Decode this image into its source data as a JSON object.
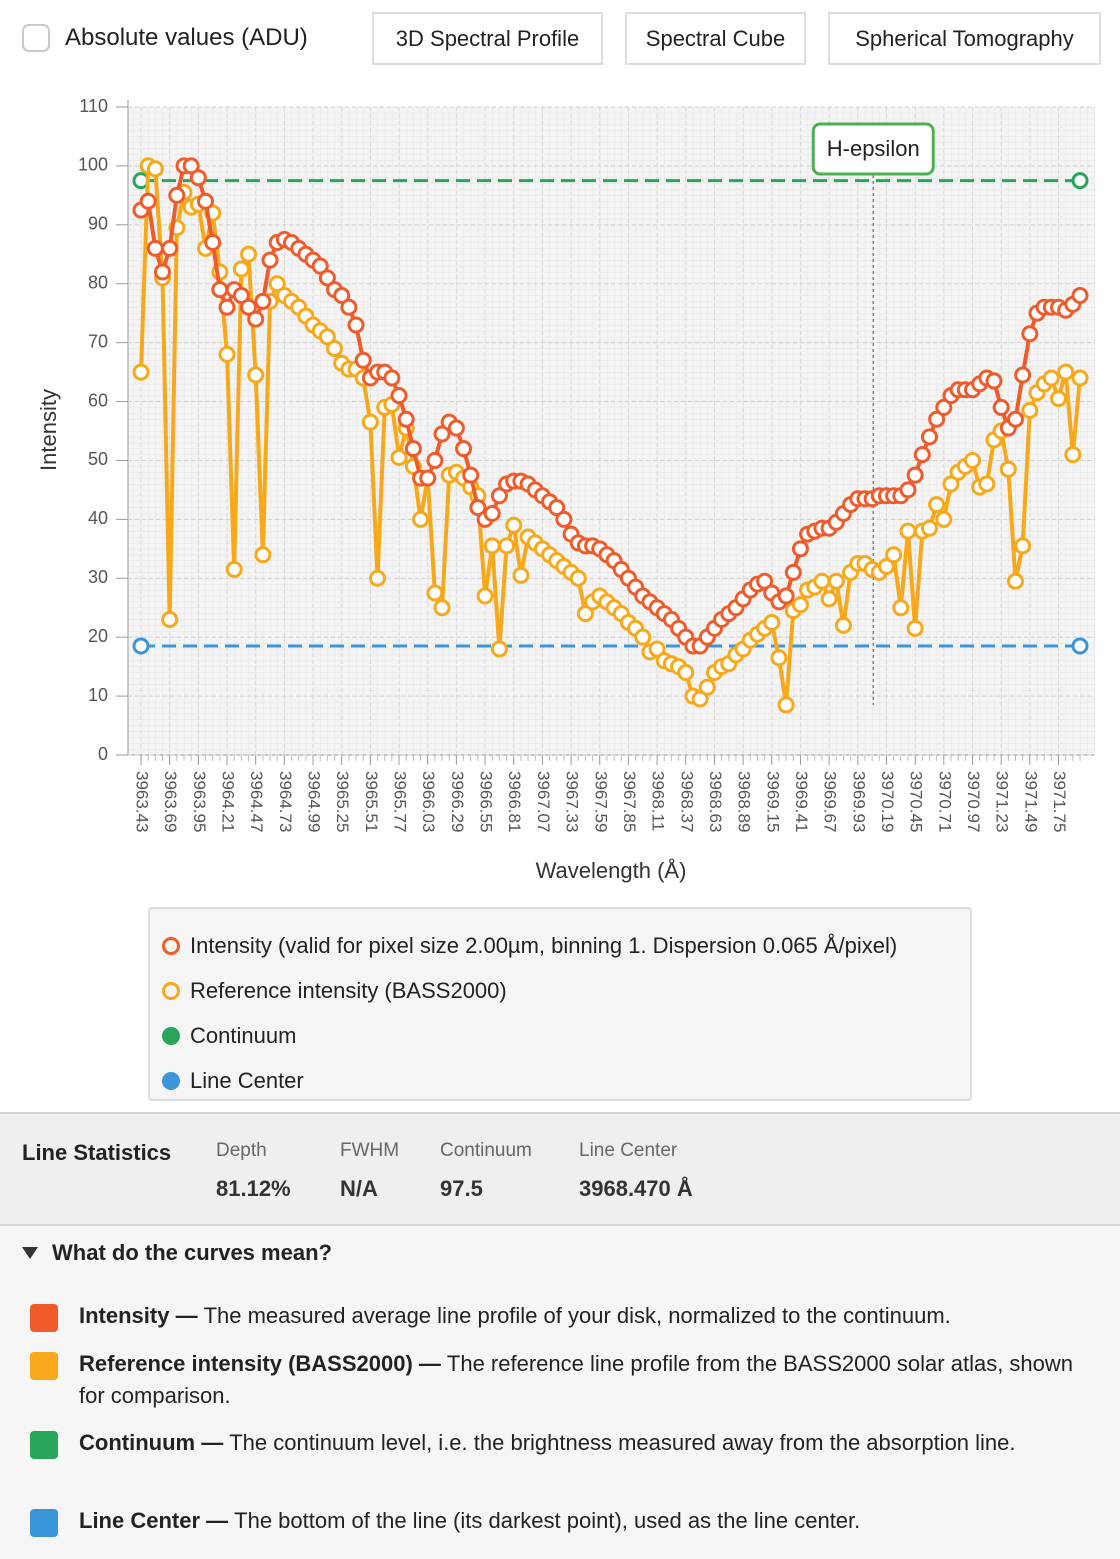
{
  "toolbar": {
    "checkbox_label": "Absolute values (ADU)",
    "buttons": [
      "3D Spectral Profile",
      "Spectral Cube",
      "Spherical Tomography"
    ]
  },
  "chart_data": {
    "type": "line",
    "x_label": "Wavelength (Å)",
    "y_label": "Intensity",
    "categories": [
      "3963.43",
      null,
      null,
      null,
      "3963.69",
      null,
      null,
      null,
      "3963.95",
      null,
      null,
      null,
      "3964.21",
      null,
      null,
      null,
      "3964.47",
      null,
      null,
      null,
      "3964.73",
      null,
      null,
      null,
      "3964.99",
      null,
      null,
      null,
      "3965.25",
      null,
      null,
      null,
      "3965.51",
      null,
      null,
      null,
      "3965.77",
      null,
      null,
      null,
      "3966.03",
      null,
      null,
      null,
      "3966.29",
      null,
      null,
      null,
      "3966.55",
      null,
      null,
      null,
      "3966.81",
      null,
      null,
      null,
      "3967.07",
      null,
      null,
      null,
      "3967.33",
      null,
      null,
      null,
      "3967.59",
      null,
      null,
      null,
      "3967.85",
      null,
      null,
      null,
      "3968.11",
      null,
      null,
      null,
      "3968.37",
      null,
      null,
      null,
      "3968.63",
      null,
      null,
      null,
      "3968.89",
      null,
      null,
      null,
      "3969.15",
      null,
      null,
      null,
      "3969.41",
      null,
      null,
      null,
      "3969.67",
      null,
      null,
      null,
      "3969.93",
      null,
      null,
      null,
      "3970.19",
      null,
      null,
      null,
      "3970.45",
      null,
      null,
      null,
      "3970.71",
      null,
      null,
      null,
      "3970.97",
      null,
      null,
      null,
      "3971.23",
      null,
      null,
      null,
      "3971.49",
      null,
      null,
      null,
      "3971.75",
      null,
      null,
      null
    ],
    "series": [
      {
        "name": "Intensity (valid for pixel size 2.00µm, binning 1. Dispersion 0.065  Å/pixel)",
        "color": "#ef5b2b",
        "values": [
          92.5,
          94,
          86,
          82,
          86,
          95,
          100,
          100,
          98,
          94,
          87,
          79,
          76,
          79,
          78,
          76,
          74,
          77,
          84,
          87,
          87.5,
          87,
          86,
          85,
          84,
          83,
          81,
          79,
          78,
          76,
          73,
          67,
          64,
          65,
          65,
          64,
          61,
          57,
          52,
          47,
          47,
          50,
          54.5,
          56.5,
          55.5,
          52,
          47.5,
          42,
          40,
          41,
          44,
          46,
          46.5,
          46.5,
          46,
          45,
          44,
          43,
          42,
          40,
          37.5,
          36,
          35.5,
          35.5,
          35,
          34,
          33,
          31.5,
          30,
          28.5,
          27,
          26,
          25,
          24,
          23,
          21.5,
          20,
          18.5,
          18.5,
          20,
          21.5,
          23,
          24,
          25,
          26.5,
          28,
          29,
          29.5,
          27.5,
          26,
          27,
          31,
          35,
          37.5,
          38,
          38.5,
          38.5,
          39.5,
          41,
          42.5,
          43.5,
          43.5,
          43.5,
          44,
          44,
          44,
          44,
          45,
          47.5,
          51,
          54,
          57,
          59,
          61,
          62,
          62,
          62,
          63,
          64,
          63.5,
          59,
          55.5,
          57,
          64.5,
          71.5,
          75,
          76,
          76,
          76,
          75.5,
          76.5,
          78
        ]
      },
      {
        "name": "Reference intensity (BASS2000)",
        "color": "#f7a81b",
        "values": [
          65,
          100,
          99.5,
          81,
          23,
          89.5,
          95.5,
          93,
          93.5,
          86,
          92,
          82,
          68,
          31.5,
          82.5,
          85,
          64.5,
          34,
          77,
          80,
          78,
          77,
          76,
          74.5,
          73,
          72,
          71,
          69,
          66.5,
          65.5,
          65.5,
          64,
          56.5,
          30,
          59,
          59.5,
          50.5,
          55.5,
          49,
          40,
          47,
          27.5,
          25,
          47.5,
          48,
          47,
          45.5,
          44,
          27,
          35.5,
          18,
          35.5,
          39,
          30.5,
          37,
          36,
          35,
          34,
          33,
          32,
          31,
          30,
          24,
          26,
          27,
          26,
          25,
          24,
          22.5,
          21.5,
          20,
          17.5,
          18,
          16,
          15.5,
          15,
          14,
          10,
          9.5,
          11.5,
          14,
          15,
          15.5,
          17,
          18,
          19.5,
          20.5,
          21.5,
          22.5,
          16.5,
          8.5,
          24.5,
          25.5,
          28,
          28.5,
          29.5,
          26.5,
          29.5,
          22,
          31,
          32.5,
          32.5,
          31.5,
          31,
          32,
          34,
          25,
          38,
          21.5,
          38,
          38.5,
          42.5,
          40,
          46,
          48,
          49,
          50,
          45.5,
          46,
          53.5,
          55,
          48.5,
          29.5,
          35.5,
          58.5,
          61.5,
          63,
          64,
          60.5,
          65,
          51,
          64
        ]
      },
      {
        "name": "Continuum",
        "color": "#27a559",
        "level": 97.5
      },
      {
        "name": "Line Center",
        "color": "#3a96d8",
        "level": 18.5
      }
    ],
    "ylim": [
      0,
      110
    ],
    "yticks": [
      0,
      10,
      20,
      30,
      40,
      50,
      60,
      70,
      80,
      90,
      100,
      110
    ],
    "grid": true,
    "annotation": {
      "text": "H-epsilon",
      "wavelength": 3970.07,
      "color": "#4caf50"
    }
  },
  "line_statistics": {
    "title": "Line Statistics",
    "items": [
      {
        "label": "Depth",
        "value": "81.12%"
      },
      {
        "label": "FWHM",
        "value": "N/A"
      },
      {
        "label": "Continuum",
        "value": "97.5"
      },
      {
        "label": "Line Center",
        "value": "3968.470 Å"
      }
    ]
  },
  "explanation": {
    "summary": "What do the curves mean?",
    "items": [
      {
        "term": "Intensity —",
        "color": "#ef5b2b",
        "text": "The measured average line profile of your disk, normalized to the continuum."
      },
      {
        "term": "Reference intensity (BASS2000) —",
        "color": "#f7a81b",
        "text": "The reference line profile from the BASS2000 solar atlas, shown for comparison."
      },
      {
        "term": "Continuum —",
        "color": "#27a559",
        "text": "The continuum level, i.e. the brightness measured away from the absorption line."
      },
      {
        "term": "Line Center —",
        "color": "#3a96d8",
        "text": "The bottom of the line (its darkest point), used as the line center."
      }
    ]
  }
}
